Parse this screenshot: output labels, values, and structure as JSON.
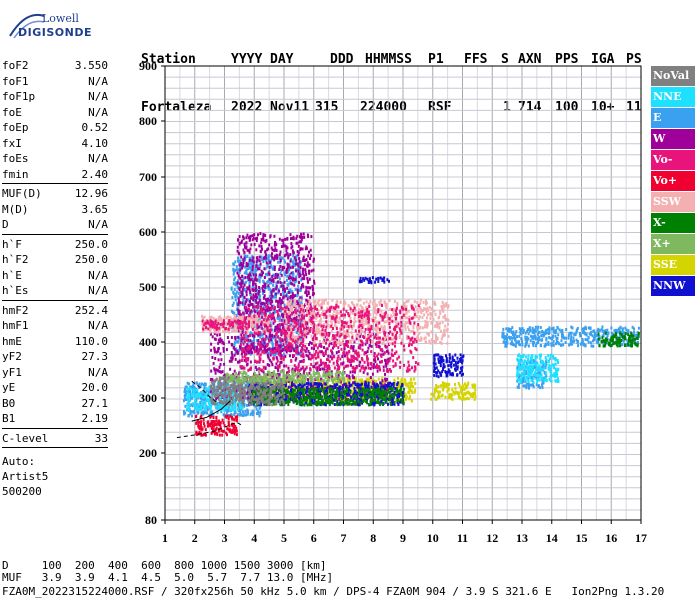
{
  "logo": {
    "line1": "Lowell",
    "line2": "DIGISONDE"
  },
  "header": {
    "labels": [
      "Station",
      "YYYY",
      "DAY",
      "DDD",
      "HHMMSS",
      "P1",
      "FFS",
      "S",
      "AXN",
      "PPS",
      "IGA",
      "PS"
    ],
    "values": [
      "Fortaleza",
      "2022",
      "Nov11",
      "315",
      "224000",
      "RSF",
      "1",
      "714",
      "100",
      "10+",
      "11"
    ]
  },
  "params": {
    "group1": [
      {
        "k": "foF2",
        "v": "3.550"
      },
      {
        "k": "foF1",
        "v": "N/A"
      },
      {
        "k": "foF1p",
        "v": "N/A"
      },
      {
        "k": "foE",
        "v": "N/A"
      },
      {
        "k": "foEp",
        "v": "0.52"
      },
      {
        "k": "fxI",
        "v": "4.10"
      },
      {
        "k": "foEs",
        "v": "N/A"
      },
      {
        "k": "fmin",
        "v": "2.40"
      }
    ],
    "group2": [
      {
        "k": "MUF(D)",
        "v": "12.96"
      },
      {
        "k": "M(D)",
        "v": "3.65"
      },
      {
        "k": "D",
        "v": "N/A"
      }
    ],
    "group3": [
      {
        "k": "h`F",
        "v": "250.0"
      },
      {
        "k": "h`F2",
        "v": "250.0"
      },
      {
        "k": "h`E",
        "v": "N/A"
      },
      {
        "k": "h`Es",
        "v": "N/A"
      }
    ],
    "group4": [
      {
        "k": "hmF2",
        "v": "252.4"
      },
      {
        "k": "hmF1",
        "v": "N/A"
      },
      {
        "k": "hmE",
        "v": "110.0"
      },
      {
        "k": "yF2",
        "v": "27.3"
      },
      {
        "k": "yF1",
        "v": "N/A"
      },
      {
        "k": "yE",
        "v": "20.0"
      },
      {
        "k": "B0",
        "v": "27.1"
      },
      {
        "k": "B1",
        "v": "2.19"
      }
    ],
    "group5": [
      {
        "k": "C-level",
        "v": "33"
      }
    ],
    "auto": [
      "Auto:",
      "Artist5",
      "500200"
    ]
  },
  "legend": [
    {
      "label": "NoVal",
      "color": "#808080"
    },
    {
      "label": "NNE",
      "color": "#1ee0ff"
    },
    {
      "label": "E",
      "color": "#3aa0f0"
    },
    {
      "label": "W",
      "color": "#a0009a"
    },
    {
      "label": "Vo-",
      "color": "#e8147c"
    },
    {
      "label": "Vo+",
      "color": "#f00030"
    },
    {
      "label": "SSW",
      "color": "#f4b0b0"
    },
    {
      "label": "X-",
      "color": "#008000"
    },
    {
      "label": "X+",
      "color": "#80b860"
    },
    {
      "label": "SSE",
      "color": "#d4d400"
    },
    {
      "label": "NNW",
      "color": "#1010d0"
    }
  ],
  "footer": {
    "line1": "D     100  200  400  600  800 1000 1500 3000 [km]",
    "line2": "MUF   3.9  3.9  4.1  4.5  5.0  5.7  7.7 13.0 [MHz]",
    "line3": "FZA0M_2022315224000.RSF / 320fx256h 50 kHz 5.0 km / DPS-4 FZA0M 904 / 3.9 S 321.6 E   Ion2Png 1.3.20"
  },
  "chart_data": {
    "type": "scatter",
    "xlim": [
      1,
      17
    ],
    "ylim": [
      80,
      900
    ],
    "x_ticks": [
      "1",
      "2",
      "3",
      "4",
      "5",
      "6",
      "7",
      "8",
      "9",
      "10",
      "11",
      "12",
      "13",
      "14",
      "15",
      "16",
      "17"
    ],
    "y_ticks": [
      "80",
      "200",
      "300",
      "400",
      "500",
      "600",
      "700",
      "800",
      "900"
    ],
    "y_tick_values": [
      80,
      200,
      300,
      400,
      500,
      600,
      700,
      800,
      900
    ],
    "grid": true,
    "series": [
      {
        "color": "#d4d400",
        "clusters": [
          {
            "x0": 3.9,
            "x1": 9.4,
            "y0": 296,
            "y1": 338
          },
          {
            "x0": 9.9,
            "x1": 11.4,
            "y0": 300,
            "y1": 330
          }
        ]
      },
      {
        "color": "#3aa0f0",
        "clusters": [
          {
            "x0": 1.6,
            "x1": 4.2,
            "y0": 270,
            "y1": 330
          },
          {
            "x0": 3.2,
            "x1": 5.6,
            "y0": 380,
            "y1": 560
          },
          {
            "x0": 12.3,
            "x1": 16.9,
            "y0": 395,
            "y1": 430
          },
          {
            "x0": 12.8,
            "x1": 13.8,
            "y0": 320,
            "y1": 370
          }
        ]
      },
      {
        "color": "#1ee0ff",
        "clusters": [
          {
            "x0": 1.7,
            "x1": 3.6,
            "y0": 280,
            "y1": 320
          },
          {
            "x0": 12.8,
            "x1": 14.2,
            "y0": 330,
            "y1": 380
          }
        ]
      },
      {
        "color": "#a0009a",
        "clusters": [
          {
            "x0": 3.2,
            "x1": 5.3,
            "y0": 384,
            "y1": 396
          },
          {
            "x0": 3.4,
            "x1": 6.0,
            "y0": 420,
            "y1": 600
          },
          {
            "x0": 2.5,
            "x1": 8.5,
            "y0": 300,
            "y1": 420
          }
        ]
      },
      {
        "color": "#f4b0b0",
        "clusters": [
          {
            "x0": 2.2,
            "x1": 4.5,
            "y0": 420,
            "y1": 450
          },
          {
            "x0": 5.0,
            "x1": 10.5,
            "y0": 400,
            "y1": 480
          }
        ]
      },
      {
        "color": "#e8147c",
        "clusters": [
          {
            "x0": 2.2,
            "x1": 3.8,
            "y0": 425,
            "y1": 442
          },
          {
            "x0": 3.5,
            "x1": 9.5,
            "y0": 350,
            "y1": 470
          }
        ]
      },
      {
        "color": "#f00030",
        "clusters": [
          {
            "x0": 2.0,
            "x1": 3.4,
            "y0": 235,
            "y1": 270
          }
        ]
      },
      {
        "color": "#1010d0",
        "clusters": [
          {
            "x0": 3.8,
            "x1": 9.0,
            "y0": 290,
            "y1": 330
          },
          {
            "x0": 7.5,
            "x1": 8.5,
            "y0": 510,
            "y1": 520
          },
          {
            "x0": 10.0,
            "x1": 11.0,
            "y0": 340,
            "y1": 380
          }
        ]
      },
      {
        "color": "#008000",
        "clusters": [
          {
            "x0": 3.8,
            "x1": 9.0,
            "y0": 290,
            "y1": 320
          },
          {
            "x0": 15.5,
            "x1": 16.9,
            "y0": 395,
            "y1": 420
          }
        ]
      },
      {
        "color": "#808080",
        "clusters": [
          {
            "x0": 2.5,
            "x1": 5.0,
            "y0": 290,
            "y1": 340
          }
        ]
      },
      {
        "color": "#80b860",
        "clusters": [
          {
            "x0": 3.0,
            "x1": 7.0,
            "y0": 330,
            "y1": 350
          }
        ]
      }
    ],
    "trace_curve": [
      [
        1.9,
        258
      ],
      [
        2.4,
        265
      ],
      [
        2.9,
        280
      ],
      [
        3.2,
        295
      ]
    ],
    "trace_curve_upper": [
      [
        1.9,
        330
      ],
      [
        2.2,
        318
      ],
      [
        2.5,
        302
      ],
      [
        2.8,
        290
      ]
    ],
    "trace_curve_lower": [
      [
        1.4,
        228
      ],
      [
        2.0,
        233
      ],
      [
        2.7,
        240
      ],
      [
        3.4,
        256
      ],
      [
        3.6,
        250
      ]
    ]
  }
}
